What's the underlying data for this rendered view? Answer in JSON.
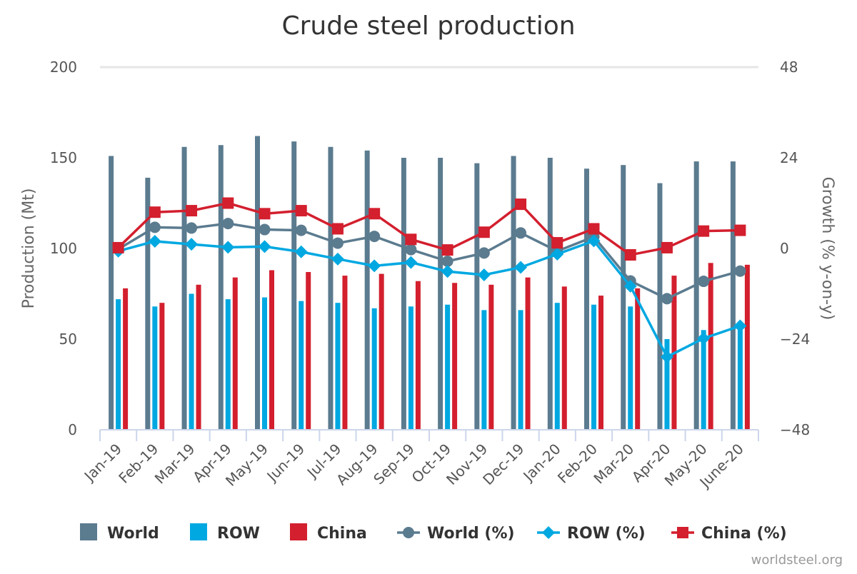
{
  "chart_data": {
    "type": "bar",
    "title": "Crude steel production",
    "categories": [
      "Jan-19",
      "Feb-19",
      "Mar-19",
      "Apr-19",
      "May-19",
      "Jun-19",
      "Jul-19",
      "Aug-19",
      "Sep-19",
      "Oct-19",
      "Nov-19",
      "Dec-19",
      "Jan-20",
      "Feb-20",
      "Mar-20",
      "Apr-20",
      "May-20",
      "June-20"
    ],
    "ylabel": "Production (Mt)",
    "y2label": "Growth (% y-on-y)",
    "ylim": [
      0,
      200
    ],
    "y2lim": [
      -48,
      48
    ],
    "yticks": [
      "0",
      "50",
      "100",
      "150",
      "200"
    ],
    "y2ticks": [
      "−48",
      "−24",
      "0",
      "24",
      "48"
    ],
    "bar_series": [
      {
        "name": "World",
        "color": "#5b7b8f",
        "values": [
          151,
          139,
          156,
          157,
          162,
          159,
          156,
          154,
          150,
          150,
          147,
          151,
          150,
          144,
          146,
          136,
          148,
          148
        ]
      },
      {
        "name": "ROW",
        "color": "#00a8e1",
        "values": [
          72,
          68,
          75,
          72,
          73,
          71,
          70,
          67,
          68,
          69,
          66,
          66,
          70,
          69,
          68,
          50,
          55,
          57
        ]
      },
      {
        "name": "China",
        "color": "#d31f2e",
        "values": [
          78,
          70,
          80,
          84,
          88,
          87,
          85,
          86,
          82,
          81,
          80,
          84,
          79,
          74,
          78,
          85,
          92,
          91
        ]
      }
    ],
    "line_series": [
      {
        "name": "World (%)",
        "color": "#5b7b8f",
        "marker": "circle",
        "values": [
          -0.2,
          5.6,
          5.4,
          6.6,
          5.0,
          4.8,
          1.4,
          3.2,
          -0.3,
          -3.4,
          -1.2,
          4.1,
          -0.7,
          3.1,
          -8.6,
          -13.3,
          -8.7,
          -6.0
        ]
      },
      {
        "name": "ROW (%)",
        "color": "#00a8e1",
        "marker": "diamond",
        "values": [
          -0.7,
          1.9,
          1.1,
          0.3,
          0.5,
          -0.9,
          -2.8,
          -4.6,
          -3.7,
          -6.1,
          -7.0,
          -5.0,
          -1.5,
          2.0,
          -10.0,
          -28.7,
          -23.8,
          -20.5
        ]
      },
      {
        "name": "China (%)",
        "color": "#d31f2e",
        "marker": "square",
        "values": [
          0.2,
          9.6,
          10.0,
          12.0,
          9.2,
          10.0,
          5.2,
          9.2,
          2.4,
          -0.4,
          4.3,
          11.7,
          1.5,
          5.2,
          -1.7,
          0.2,
          4.6,
          4.8
        ]
      }
    ],
    "grid": false,
    "legend_position": "bottom"
  },
  "credit": "worldsteel.org"
}
